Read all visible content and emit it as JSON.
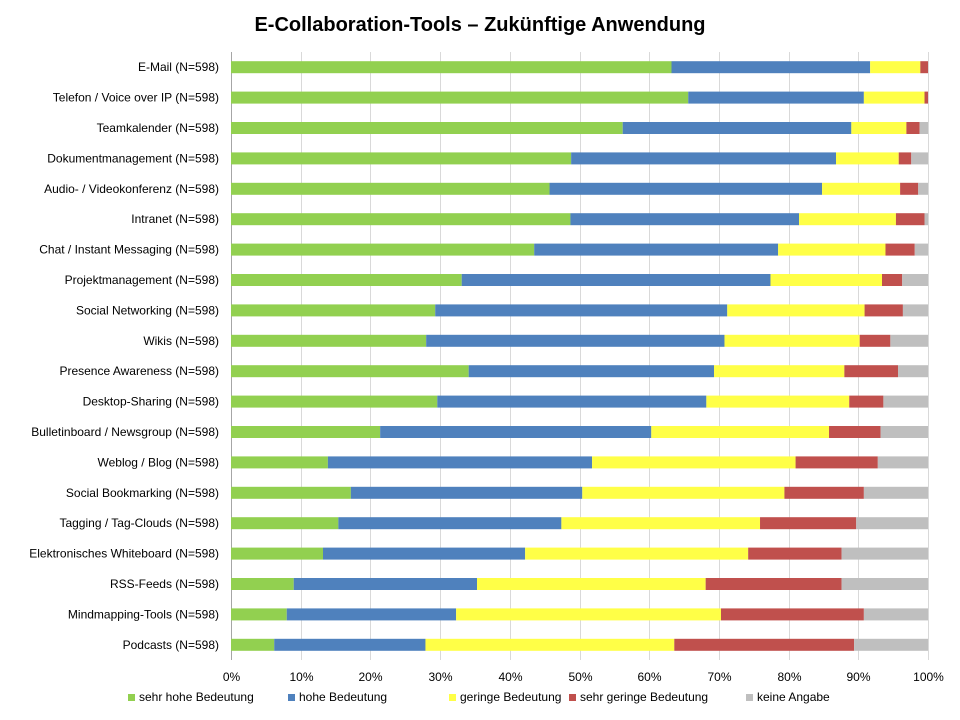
{
  "chart_data": {
    "type": "bar",
    "orientation": "horizontal",
    "stacked": "percent",
    "title": "E-Collaboration-Tools  – Zukünftige Anwendung",
    "xlabel": "",
    "ylabel": "",
    "xlim": [
      0,
      100
    ],
    "x_ticks": [
      "0%",
      "10%",
      "20%",
      "30%",
      "40%",
      "50%",
      "60%",
      "70%",
      "80%",
      "90%",
      "100%"
    ],
    "grid": true,
    "legend_position": "bottom",
    "categories": [
      "E-Mail (N=598)",
      "Telefon / Voice over IP (N=598)",
      "Teamkalender (N=598)",
      "Dokumentmanagement (N=598)",
      "Audio- / Videokonferenz (N=598)",
      "Intranet (N=598)",
      "Chat / Instant Messaging (N=598)",
      "Projektmanagement (N=598)",
      "Social Networking (N=598)",
      "Wikis (N=598)",
      "Presence Awareness (N=598)",
      "Desktop-Sharing (N=598)",
      "Bulletinboard / Newsgroup (N=598)",
      "Weblog / Blog (N=598)",
      "Social Bookmarking (N=598)",
      "Tagging / Tag-Clouds (N=598)",
      "Elektronisches Whiteboard (N=598)",
      "RSS-Feeds (N=598)",
      "Mindmapping-Tools (N=598)",
      "Podcasts (N=598)"
    ],
    "series": [
      {
        "name": "sehr hohe Bedeutung",
        "color": "#92d050",
        "values": [
          63.2,
          65.6,
          56.2,
          48.8,
          45.7,
          48.7,
          43.5,
          33.1,
          29.3,
          28.0,
          34.1,
          29.6,
          21.4,
          13.9,
          17.2,
          15.4,
          13.2,
          9.0,
          8.0,
          6.2
        ]
      },
      {
        "name": "hohe Bedeutung",
        "color": "#4f81bd",
        "values": [
          28.5,
          25.2,
          32.8,
          38.0,
          39.1,
          32.8,
          35.0,
          44.3,
          41.9,
          42.8,
          35.2,
          38.6,
          38.9,
          37.9,
          33.2,
          32.0,
          29.0,
          26.3,
          24.3,
          21.7
        ]
      },
      {
        "name": "geringe Bedeutung",
        "color": "#ffff47",
        "values": [
          7.2,
          8.7,
          7.9,
          9.0,
          11.2,
          13.9,
          15.4,
          16.0,
          19.7,
          19.4,
          18.7,
          20.5,
          25.5,
          29.2,
          29.0,
          28.5,
          32.0,
          32.8,
          38.0,
          35.7
        ]
      },
      {
        "name": "sehr geringe Bedeutung",
        "color": "#c0504d",
        "values": [
          1.1,
          0.5,
          1.9,
          1.8,
          2.6,
          4.1,
          4.2,
          2.9,
          5.5,
          4.4,
          7.7,
          4.9,
          7.4,
          11.8,
          11.4,
          13.8,
          13.4,
          19.5,
          20.5,
          25.8
        ]
      },
      {
        "name": "keine Angabe",
        "color": "#bfbfbf",
        "values": [
          0.0,
          0.0,
          1.2,
          2.4,
          1.4,
          0.5,
          1.9,
          3.7,
          3.6,
          5.4,
          4.3,
          6.4,
          6.8,
          7.2,
          9.2,
          10.3,
          12.4,
          12.4,
          9.2,
          10.6
        ]
      }
    ]
  }
}
